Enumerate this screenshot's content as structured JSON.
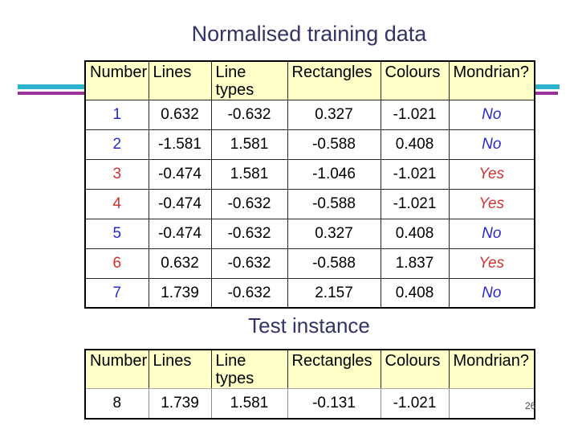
{
  "slide": {
    "title": "Normalised training data",
    "test_instance_title": "Test instance",
    "page_number": "26"
  },
  "colors": {
    "title_text": "#333366",
    "header_background": "#FFFFC8",
    "yes_text": "#CC3333",
    "no_text": "#2929CC",
    "teal_stripe": "#2CB4CE",
    "purple_stripe": "#993399"
  },
  "training_table": {
    "headers": [
      "Number",
      "Lines",
      "Line\ntypes",
      "Rectangles",
      "Colours",
      "Mondrian?"
    ],
    "rows": [
      [
        "1",
        "0.632",
        "-0.632",
        "0.327",
        "-1.021",
        "No"
      ],
      [
        "2",
        "-1.581",
        "1.581",
        "-0.588",
        "0.408",
        "No"
      ],
      [
        "3",
        "-0.474",
        "1.581",
        "-1.046",
        "-1.021",
        "Yes"
      ],
      [
        "4",
        "-0.474",
        "-0.632",
        "-0.588",
        "-1.021",
        "Yes"
      ],
      [
        "5",
        "-0.474",
        "-0.632",
        "0.327",
        "0.408",
        "No"
      ],
      [
        "6",
        "0.632",
        "-0.632",
        "-0.588",
        "1.837",
        "Yes"
      ],
      [
        "7",
        "1.739",
        "-0.632",
        "2.157",
        "0.408",
        "No"
      ]
    ]
  },
  "test_table": {
    "headers": [
      "Number",
      "Lines",
      "Line\ntypes",
      "Rectangles",
      "Colours",
      "Mondrian?"
    ],
    "rows": [
      [
        "8",
        "1.739",
        "1.581",
        "-0.131",
        "-1.021",
        ""
      ]
    ]
  }
}
